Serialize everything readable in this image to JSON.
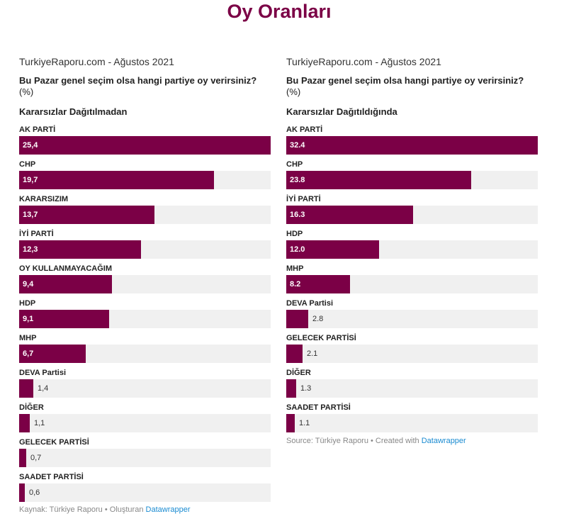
{
  "page": {
    "title": "Oy Oranları"
  },
  "colors": {
    "bar": "#7b0046",
    "background_bar": "#f0f0f0",
    "link": "#1a8bd1"
  },
  "chart_data": [
    {
      "type": "bar",
      "publisher": "TurkiyeRaporu.com - Ağustos 2021",
      "title": "Bu Pazar genel seçim olsa hangi partiye oy verirsiniz?",
      "unit": "(%)",
      "subtitle": "Kararsızlar Dağıtılmadan",
      "categories": [
        "AK PARTİ",
        "CHP",
        "KARARSIZIM",
        "İYİ PARTİ",
        "OY KULLANMAYACAĞIM",
        "HDP",
        "MHP",
        "DEVA Partisi",
        "DİĞER",
        "GELECEK PARTİSİ",
        "SAADET PARTİSİ"
      ],
      "values": [
        25.4,
        19.7,
        13.7,
        12.3,
        9.4,
        9.1,
        6.7,
        1.4,
        1.1,
        0.7,
        0.6
      ],
      "value_labels": [
        "25,4",
        "19,7",
        "13,7",
        "12,3",
        "9,4",
        "9,1",
        "6,7",
        "1,4",
        "1,1",
        "0,7",
        "0,6"
      ],
      "xlim": [
        0,
        25.4
      ],
      "footer": {
        "prefix": "Kaynak: Türkiye Raporu • Oluşturan ",
        "brand": "Datawrapper"
      }
    },
    {
      "type": "bar",
      "publisher": "TurkiyeRaporu.com - Ağustos 2021",
      "title": "Bu Pazar genel seçim olsa hangi partiye oy verirsiniz?",
      "unit": "(%)",
      "subtitle": "Kararsızlar Dağıtıldığında",
      "categories": [
        "AK PARTİ",
        "CHP",
        "İYİ PARTİ",
        "HDP",
        "MHP",
        "DEVA Partisi",
        "GELECEK PARTİSİ",
        "DİĞER",
        "SAADET PARTİSİ"
      ],
      "values": [
        32.4,
        23.8,
        16.3,
        12.0,
        8.2,
        2.8,
        2.1,
        1.3,
        1.1
      ],
      "value_labels": [
        "32.4",
        "23.8",
        "16.3",
        "12.0",
        "8.2",
        "2.8",
        "2.1",
        "1.3",
        "1.1"
      ],
      "xlim": [
        0,
        32.4
      ],
      "footer": {
        "prefix": "Source: Türkiye Raporu • Created with ",
        "brand": "Datawrapper"
      }
    }
  ]
}
